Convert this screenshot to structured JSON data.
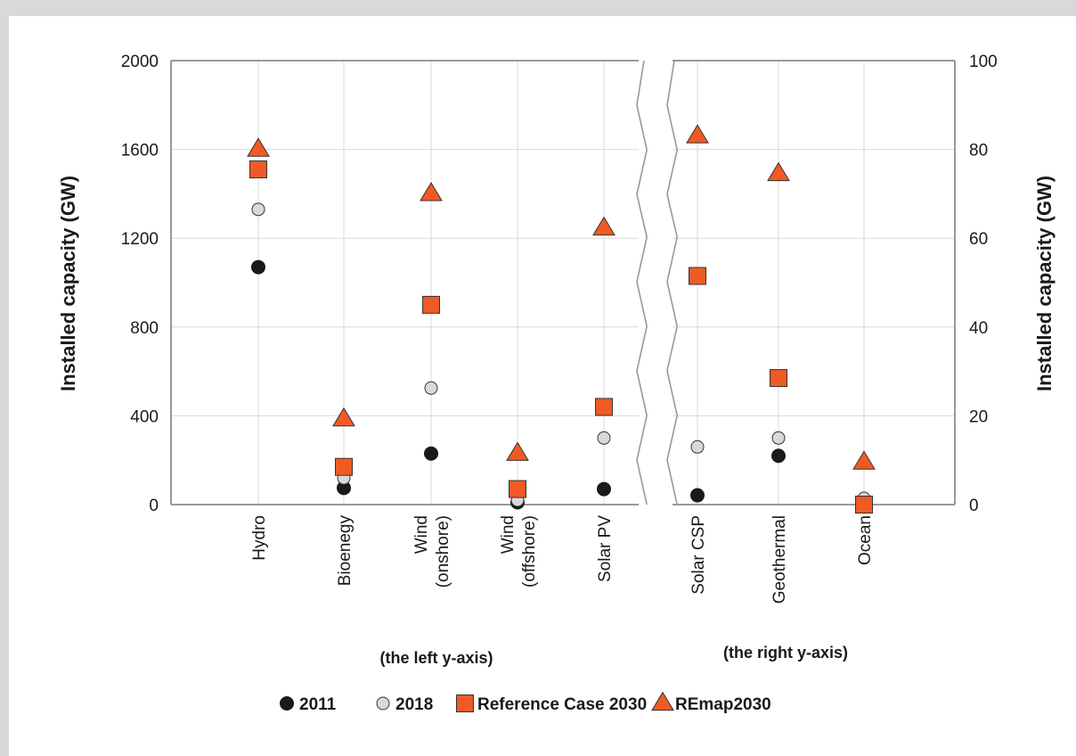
{
  "chart_data": {
    "type": "scatter",
    "left_axis": {
      "label": "Installed capacity (GW)",
      "ticks": [
        "0",
        "400",
        "800",
        "1200",
        "1600",
        "2000"
      ],
      "ylim": [
        0,
        2000
      ],
      "note": "(the  left y-axis)"
    },
    "right_axis": {
      "label": "Installed capacity (GW)",
      "ticks": [
        "0",
        "20",
        "40",
        "60",
        "80",
        "100"
      ],
      "ylim": [
        0,
        100
      ],
      "note": "(the right y-axis)"
    },
    "grid": true,
    "legend_position": "bottom",
    "colors": {
      "s2011": "#1a1a1a",
      "s2018": "#d9d9d9",
      "ref": "#f15a24",
      "remap": "#f15a24",
      "grid": "#d9d9d9",
      "axis": "#999999"
    },
    "categories": [
      {
        "name": "Hydro",
        "axis": "left",
        "lines": [
          "Hydro"
        ]
      },
      {
        "name": "Bioenegy",
        "axis": "left",
        "lines": [
          "Bioenegy"
        ]
      },
      {
        "name": "Wind (onshore)",
        "axis": "left",
        "lines": [
          "Wind",
          "(onshore)"
        ]
      },
      {
        "name": "Wind (offshore)",
        "axis": "left",
        "lines": [
          "Wind",
          "(offshore)"
        ]
      },
      {
        "name": "Solar PV",
        "axis": "left",
        "lines": [
          "Solar PV"
        ]
      },
      {
        "name": "Solar CSP",
        "axis": "right",
        "lines": [
          "Solar CSP"
        ]
      },
      {
        "name": "Geothermal",
        "axis": "right",
        "lines": [
          "Geothermal"
        ]
      },
      {
        "name": "Ocean",
        "axis": "right",
        "lines": [
          "Ocean"
        ]
      }
    ],
    "series": [
      {
        "name": "2011",
        "marker": "circle-filled",
        "values": [
          1070,
          75,
          230,
          10,
          70,
          2.1,
          11,
          0.5
        ]
      },
      {
        "name": "2018",
        "marker": "circle-open",
        "values": [
          1330,
          120,
          525,
          20,
          300,
          13,
          15,
          1.4
        ]
      },
      {
        "name": "Reference Case 2030",
        "marker": "square",
        "values": [
          1510,
          170,
          900,
          70,
          440,
          51.5,
          28.5,
          0
        ]
      },
      {
        "name": "REmap2030",
        "marker": "triangle",
        "values": [
          1600,
          385,
          1400,
          230,
          1245,
          83,
          74.5,
          9.5
        ]
      }
    ]
  }
}
